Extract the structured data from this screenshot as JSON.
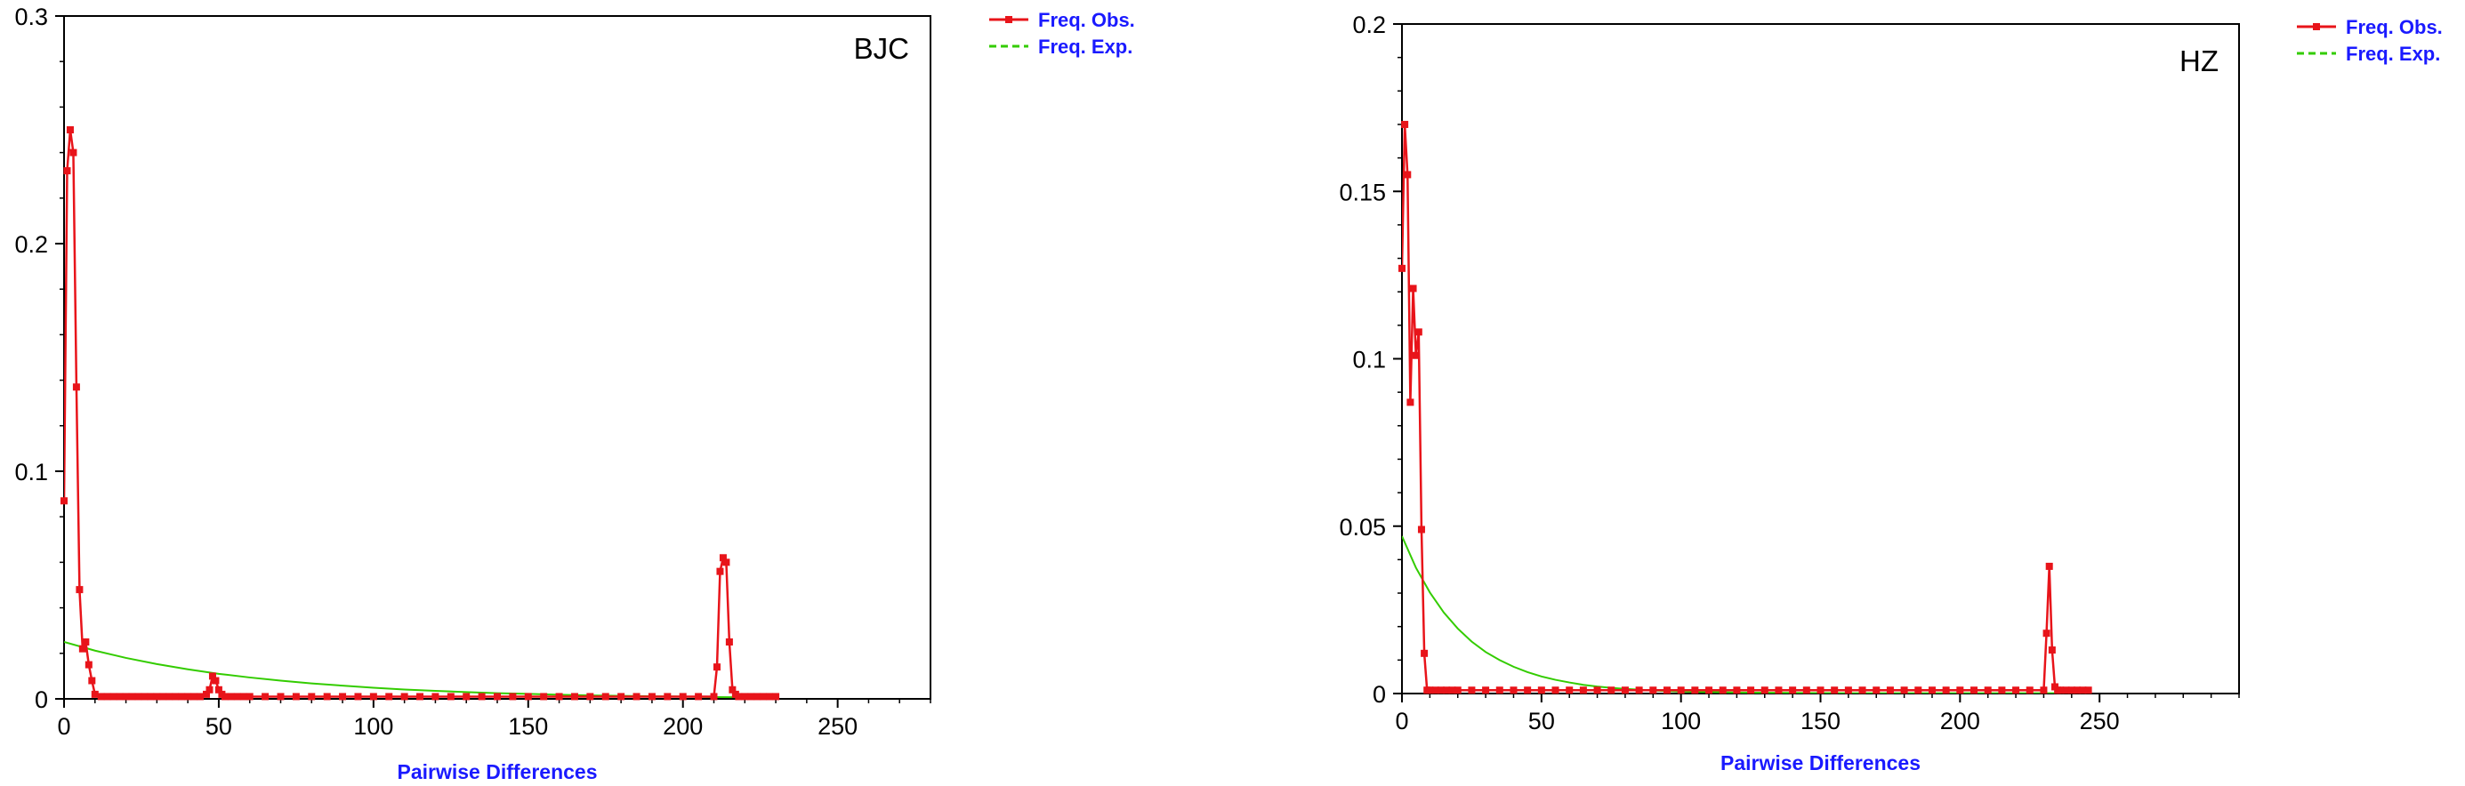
{
  "colors": {
    "observed": "#e8141a",
    "expected": "#33cc00",
    "axis_title": "#1a1aff",
    "legend_text": "#1a1aff"
  },
  "chart_data": [
    {
      "type": "line",
      "panel_label": "BJC",
      "xlabel": "Pairwise Differences",
      "ylabel": "",
      "xlim": [
        0,
        280
      ],
      "ylim": [
        0,
        0.3
      ],
      "x_ticks": [
        0,
        50,
        100,
        150,
        200,
        250
      ],
      "y_ticks": [
        0,
        0.1,
        0.2,
        0.3
      ],
      "y_tick_labels": [
        "0",
        "0.1",
        "0.2",
        "0.3"
      ],
      "legend_position": "top-right-outside",
      "series": [
        {
          "name": "Freq. Obs.",
          "style": "solid-with-square-markers",
          "x": [
            0,
            1,
            2,
            3,
            4,
            5,
            6,
            7,
            8,
            9,
            10,
            12,
            14,
            16,
            18,
            20,
            22,
            24,
            26,
            28,
            30,
            32,
            34,
            36,
            38,
            40,
            42,
            44,
            46,
            47,
            48,
            49,
            50,
            51,
            52,
            54,
            56,
            58,
            60,
            65,
            70,
            75,
            80,
            85,
            90,
            95,
            100,
            105,
            110,
            115,
            120,
            125,
            130,
            135,
            140,
            145,
            150,
            155,
            160,
            165,
            170,
            175,
            180,
            185,
            190,
            195,
            200,
            205,
            210,
            211,
            212,
            213,
            214,
            215,
            216,
            217,
            218,
            220,
            222,
            224,
            226,
            228,
            230
          ],
          "y": [
            0.087,
            0.232,
            0.25,
            0.24,
            0.137,
            0.048,
            0.022,
            0.025,
            0.015,
            0.008,
            0.002,
            0.001,
            0.001,
            0.001,
            0.001,
            0.001,
            0.001,
            0.001,
            0.001,
            0.001,
            0.001,
            0.001,
            0.001,
            0.001,
            0.001,
            0.001,
            0.001,
            0.001,
            0.002,
            0.004,
            0.01,
            0.008,
            0.004,
            0.002,
            0.001,
            0.001,
            0.001,
            0.001,
            0.001,
            0.001,
            0.001,
            0.001,
            0.001,
            0.001,
            0.001,
            0.001,
            0.001,
            0.001,
            0.001,
            0.001,
            0.001,
            0.001,
            0.001,
            0.001,
            0.001,
            0.001,
            0.001,
            0.001,
            0.001,
            0.001,
            0.001,
            0.001,
            0.001,
            0.001,
            0.001,
            0.001,
            0.001,
            0.001,
            0.001,
            0.014,
            0.056,
            0.062,
            0.06,
            0.025,
            0.004,
            0.002,
            0.001,
            0.001,
            0.001,
            0.001,
            0.001,
            0.001,
            0.001
          ]
        },
        {
          "name": "Freq. Exp.",
          "style": "dashed",
          "x": [
            0,
            10,
            20,
            30,
            40,
            50,
            60,
            70,
            80,
            90,
            100,
            110,
            120,
            130,
            140,
            150,
            160,
            170,
            180,
            190,
            200,
            210,
            220,
            230
          ],
          "y": [
            0.025,
            0.0212,
            0.018,
            0.0153,
            0.013,
            0.011,
            0.0094,
            0.008,
            0.0068,
            0.0058,
            0.0049,
            0.0041,
            0.0035,
            0.003,
            0.0025,
            0.0022,
            0.0018,
            0.0015,
            0.0013,
            0.0011,
            0.001,
            0.0008,
            0.0007,
            0.0006
          ]
        }
      ]
    },
    {
      "type": "line",
      "panel_label": "HZ",
      "xlabel": "Pairwise Differences",
      "ylabel": "",
      "xlim": [
        0,
        300
      ],
      "ylim": [
        0,
        0.2
      ],
      "x_ticks": [
        0,
        50,
        100,
        150,
        200,
        250
      ],
      "y_ticks": [
        0,
        0.05,
        0.1,
        0.15,
        0.2
      ],
      "y_tick_labels": [
        "0",
        "0.05",
        "0.1",
        "0.15",
        "0.2"
      ],
      "legend_position": "top-right-outside",
      "series": [
        {
          "name": "Freq. Obs.",
          "style": "solid-with-square-markers",
          "x": [
            0,
            1,
            2,
            3,
            4,
            5,
            6,
            7,
            8,
            9,
            10,
            12,
            14,
            16,
            18,
            20,
            25,
            30,
            35,
            40,
            45,
            50,
            55,
            60,
            65,
            70,
            75,
            80,
            85,
            90,
            95,
            100,
            105,
            110,
            115,
            120,
            125,
            130,
            135,
            140,
            145,
            150,
            155,
            160,
            165,
            170,
            175,
            180,
            185,
            190,
            195,
            200,
            205,
            210,
            215,
            220,
            225,
            230,
            231,
            232,
            233,
            234,
            235,
            236,
            238,
            240,
            242,
            244,
            246
          ],
          "y": [
            0.127,
            0.17,
            0.155,
            0.087,
            0.121,
            0.101,
            0.108,
            0.049,
            0.012,
            0.001,
            0.001,
            0.001,
            0.001,
            0.001,
            0.001,
            0.001,
            0.001,
            0.001,
            0.001,
            0.001,
            0.001,
            0.001,
            0.001,
            0.001,
            0.001,
            0.001,
            0.001,
            0.001,
            0.001,
            0.001,
            0.001,
            0.001,
            0.001,
            0.001,
            0.001,
            0.001,
            0.001,
            0.001,
            0.001,
            0.001,
            0.001,
            0.001,
            0.001,
            0.001,
            0.001,
            0.001,
            0.001,
            0.001,
            0.001,
            0.001,
            0.001,
            0.001,
            0.001,
            0.001,
            0.001,
            0.001,
            0.001,
            0.001,
            0.018,
            0.038,
            0.013,
            0.002,
            0.001,
            0.001,
            0.001,
            0.001,
            0.001,
            0.001,
            0.001
          ]
        },
        {
          "name": "Freq. Exp.",
          "style": "dashed",
          "x": [
            0,
            5,
            10,
            15,
            20,
            25,
            30,
            35,
            40,
            45,
            50,
            55,
            60,
            65,
            70,
            75,
            80,
            90,
            100,
            120,
            140,
            160,
            180,
            200,
            220,
            246
          ],
          "y": [
            0.047,
            0.0376,
            0.0302,
            0.0242,
            0.0194,
            0.0155,
            0.0124,
            0.01,
            0.008,
            0.0064,
            0.0051,
            0.0041,
            0.0033,
            0.0026,
            0.0021,
            0.0017,
            0.0014,
            0.0009,
            0.0006,
            0.0003,
            0.0002,
            0.0001,
            0.0001,
            0.0001,
            0.0001,
            0.0001
          ]
        }
      ]
    }
  ]
}
